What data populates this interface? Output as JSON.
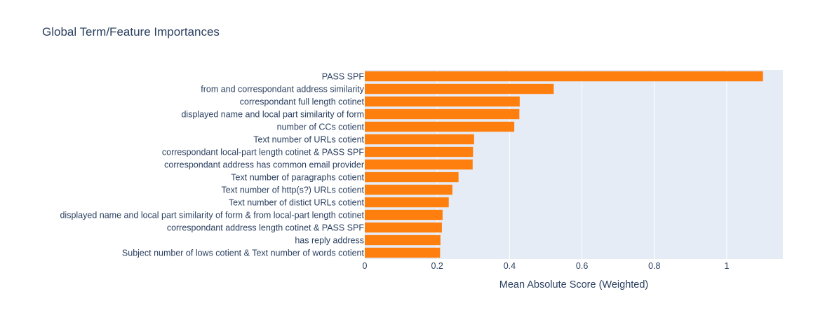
{
  "chart_data": {
    "type": "bar",
    "orientation": "horizontal",
    "title": "Global Term/Feature Importances",
    "xlabel": "Mean Absolute Score (Weighted)",
    "ylabel": "",
    "xlim": [
      0,
      1.155
    ],
    "xticks": [
      0,
      0.2,
      0.4,
      0.6,
      0.8,
      1
    ],
    "xtick_labels": [
      "0",
      "0.2",
      "0.4",
      "0.6",
      "0.8",
      "1"
    ],
    "grid": true,
    "colors": {
      "bar": "#ff7f0e",
      "plot_bg": "#e5ecf6",
      "grid": "#ffffff",
      "text": "#2a3f5f"
    },
    "categories": [
      "PASS SPF",
      "from and correspondant address similarity",
      "correspondant full length cotinet",
      "displayed name and local part similarity of form",
      "number of CCs cotient",
      "Text number of URLs cotient",
      "correspondant local-part length cotinet & PASS SPF",
      "correspondant address has common email provider",
      "Text number of paragraphs cotient",
      "Text number of http(s?) URLs cotient",
      "Text number of distict URLs cotient",
      "displayed name and local part similarity of form & from local-part length cotinet",
      "correspondant address length cotinet & PASS SPF",
      "has reply address",
      "Subject number of lows cotient & Text number of words cotient"
    ],
    "values": [
      1.1,
      0.522,
      0.428,
      0.427,
      0.413,
      0.302,
      0.299,
      0.298,
      0.259,
      0.242,
      0.232,
      0.215,
      0.213,
      0.209,
      0.208
    ]
  }
}
